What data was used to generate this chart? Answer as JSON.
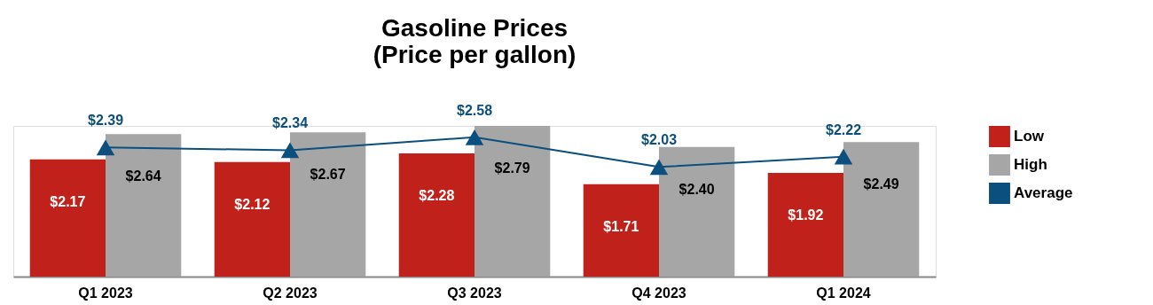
{
  "chart_data": {
    "type": "bar",
    "title": [
      "Gasoline Prices",
      "(Price per gallon)"
    ],
    "categories": [
      "Q1 2023",
      "Q2 2023",
      "Q3 2023",
      "Q4 2023",
      "Q1 2024"
    ],
    "series": [
      {
        "name": "Low",
        "color": "#c0211a",
        "values": [
          2.17,
          2.12,
          2.28,
          1.71,
          1.92
        ],
        "value_labels": [
          "$2.17",
          "$2.12",
          "$2.28",
          "$1.71",
          "$1.92"
        ]
      },
      {
        "name": "High",
        "color": "#a6a6a6",
        "values": [
          2.64,
          2.67,
          2.79,
          2.4,
          2.49
        ],
        "value_labels": [
          "$2.64",
          "$2.67",
          "$2.79",
          "$2.40",
          "$2.49"
        ]
      },
      {
        "name": "Average",
        "type": "line",
        "color": "#0b4f7e",
        "marker": "triangle",
        "values": [
          2.39,
          2.34,
          2.58,
          2.03,
          2.22
        ],
        "value_labels": [
          "$2.39",
          "$2.34",
          "$2.58",
          "$2.03",
          "$2.22"
        ]
      }
    ],
    "legend": "right",
    "grid": false
  }
}
